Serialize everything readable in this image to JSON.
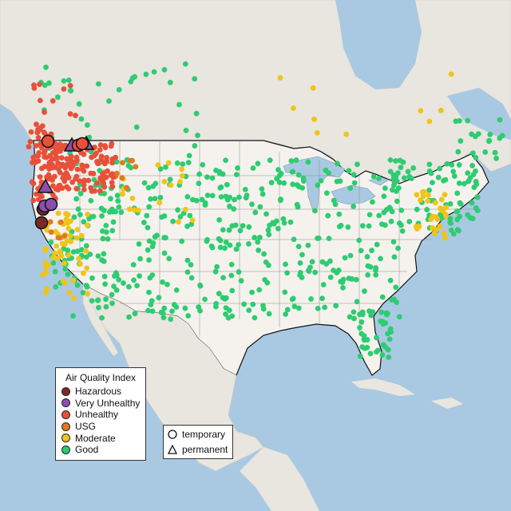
{
  "colors": {
    "ocean": "#a9c9e2",
    "land_us": "#f4f1ed",
    "land_other": "#e7e3dd",
    "border": "#111111"
  },
  "legend_aqi": {
    "title": "Air Quality Index",
    "items": [
      {
        "label": "Hazardous",
        "color": "#7b2a22"
      },
      {
        "label": "Very Unhealthy",
        "color": "#8a4fae"
      },
      {
        "label": "Unhealthy",
        "color": "#e8503a"
      },
      {
        "label": "USG",
        "color": "#e07a1f"
      },
      {
        "label": "Moderate",
        "color": "#f0c419"
      },
      {
        "label": "Good",
        "color": "#2ecc71"
      }
    ]
  },
  "legend_type": {
    "items": [
      {
        "label": "temporary",
        "icon": "circle-icon"
      },
      {
        "label": "permanent",
        "icon": "triangle-icon"
      }
    ]
  },
  "sensor_markers": {
    "large": [
      {
        "id": "hz1",
        "category": "Hazardous",
        "shape": "circle"
      },
      {
        "id": "hz2",
        "category": "Hazardous",
        "shape": "circle"
      },
      {
        "id": "vu1",
        "category": "Very Unhealthy",
        "shape": "circle"
      },
      {
        "id": "vu2",
        "category": "Very Unhealthy",
        "shape": "circle"
      },
      {
        "id": "vu3",
        "category": "Very Unhealthy",
        "shape": "triangle"
      },
      {
        "id": "vu4",
        "category": "Very Unhealthy",
        "shape": "triangle"
      },
      {
        "id": "vu5",
        "category": "Very Unhealthy",
        "shape": "triangle"
      },
      {
        "id": "uh1",
        "category": "Unhealthy",
        "shape": "circle"
      },
      {
        "id": "uh2",
        "category": "Unhealthy",
        "shape": "circle"
      },
      {
        "id": "uh3",
        "category": "Unhealthy",
        "shape": "circle"
      }
    ]
  }
}
